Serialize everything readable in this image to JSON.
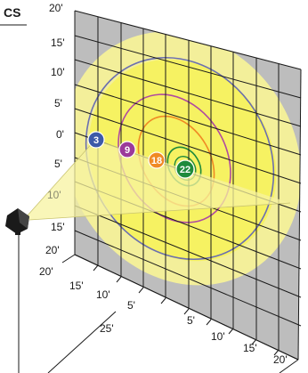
{
  "heading_fragment": "CS",
  "wall_axis_labels": [
    "20'",
    "15'",
    "10'",
    "5'",
    "0'",
    "5'",
    "10'",
    "15'",
    "20'"
  ],
  "floor_left_labels": [
    "20'",
    "15'",
    "10'",
    "5'"
  ],
  "floor_right_labels": [
    "5'",
    "10'",
    "15'",
    "20'"
  ],
  "distance_label": "25'",
  "footcandle_badges": [
    {
      "value": "3",
      "color": "#3d5aa8"
    },
    {
      "value": "9",
      "color": "#9b3a9a"
    },
    {
      "value": "18",
      "color": "#f08a24"
    },
    {
      "value": "22",
      "color": "#1e8a3c"
    }
  ],
  "colors": {
    "wall_fill": "#bdbdbd",
    "outer_glow": "#f3ef9a",
    "inner_glow": "#f6f25c",
    "beam": "#f7f3a0",
    "ring_outer": "#6b6fb0",
    "ring_mid": "#b04aa0",
    "ring_inner": "#f08a24",
    "ring_core": "#1e8a3c"
  },
  "icons": [
    "light-fixture-icon"
  ]
}
